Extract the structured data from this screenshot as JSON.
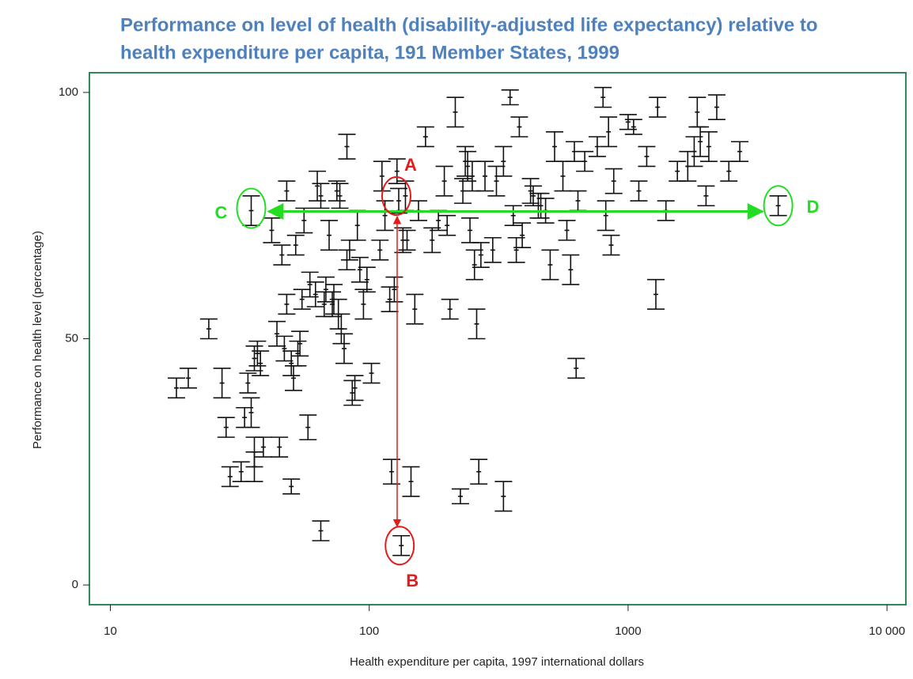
{
  "chart_data": {
    "type": "errorbar_scatter",
    "title": [
      "Performance on level of health (disability-adjusted life expectancy) relative to",
      "health expenditure per capita, 191 Member States, 1999"
    ],
    "x_label": "Health expenditure per capita, 1997 international dollars",
    "y_label": "Performance on health level (percentage)",
    "x_log": true,
    "xlim": [
      8.3,
      11830
    ],
    "ylim": [
      -4,
      104
    ],
    "xticks": [
      10,
      100,
      1000,
      {
        "value": 10000,
        "label": "10 000"
      }
    ],
    "yticks": [
      0,
      50,
      100
    ],
    "color": "#111111",
    "frame_color": "#2e8b57",
    "annotations": [
      {
        "label": "A",
        "color": "#e31b1b"
      },
      {
        "label": "B",
        "color": "#e31b1b"
      },
      {
        "label": "C",
        "color": "#22dd22"
      },
      {
        "label": "D",
        "color": "#22dd22"
      }
    ],
    "x": [
      18,
      20,
      24,
      27,
      28,
      29,
      32,
      33,
      34,
      35,
      35,
      36,
      36,
      36,
      37,
      38,
      39,
      42,
      44,
      45,
      46,
      47,
      48,
      48,
      50,
      50,
      51,
      52,
      53,
      54,
      55,
      56,
      58,
      59,
      62,
      63,
      65,
      65,
      67,
      68,
      70,
      72,
      73,
      75,
      76,
      77,
      78,
      80,
      82,
      82,
      84,
      86,
      88,
      90,
      92,
      95,
      98,
      102,
      110,
      112,
      115,
      120,
      122,
      125,
      128,
      130,
      133,
      135,
      138,
      140,
      145,
      150,
      155,
      165,
      175,
      185,
      195,
      200,
      205,
      215,
      225,
      230,
      235,
      240,
      245,
      250,
      255,
      260,
      265,
      270,
      280,
      300,
      310,
      330,
      330,
      350,
      360,
      370,
      380,
      390,
      420,
      430,
      450,
      460,
      480,
      500,
      520,
      560,
      580,
      600,
      620,
      630,
      640,
      680,
      760,
      800,
      820,
      840,
      860,
      880,
      1000,
      1050,
      1100,
      1180,
      1280,
      1300,
      1400,
      1550,
      1700,
      1800,
      1850,
      1900,
      2000,
      2050,
      2200,
      2450,
      2700,
      3800
    ],
    "values": [
      40,
      42,
      52,
      41,
      32,
      22,
      23,
      34,
      41,
      76,
      35,
      24,
      27,
      46,
      47,
      45,
      28,
      72,
      51,
      28,
      67,
      48,
      57,
      80,
      20,
      45,
      42,
      69,
      47,
      49,
      58,
      74,
      32,
      61,
      59,
      81,
      11,
      79,
      57,
      60,
      71,
      57,
      58,
      80,
      55,
      79,
      52,
      48,
      89,
      66,
      68,
      39,
      40,
      73,
      64,
      57,
      62,
      43,
      68,
      83,
      75,
      58,
      23,
      60,
      84,
      78,
      8,
      70,
      79,
      70,
      21,
      56,
      76,
      91,
      70,
      74,
      82,
      73,
      56,
      96,
      18,
      80,
      86,
      85,
      72,
      83,
      65,
      53,
      23,
      67,
      83,
      68,
      82,
      86,
      18,
      99,
      75,
      68,
      93,
      71,
      80,
      79,
      77,
      77,
      76,
      65,
      89,
      83,
      72,
      64,
      88,
      44,
      78,
      86,
      89,
      99,
      75,
      92,
      69,
      82,
      94,
      93,
      80,
      87,
      59,
      97,
      76,
      84,
      85,
      88,
      96,
      90,
      79,
      89,
      97,
      84,
      88,
      77
    ],
    "errors": [
      2,
      2,
      2,
      3,
      2,
      2,
      2,
      2,
      2,
      3,
      3,
      3,
      3,
      2.5,
      2.5,
      2.5,
      2,
      2.5,
      2.5,
      2,
      2,
      2.5,
      2,
      2,
      1.5,
      2.5,
      2.5,
      2,
      2.5,
      2.5,
      2,
      2.5,
      2.5,
      2.5,
      2.5,
      3,
      2,
      2.5,
      2.5,
      2.5,
      3,
      2.5,
      3,
      2,
      3,
      2.5,
      3,
      3,
      2.5,
      2,
      2,
      2.5,
      2.5,
      3,
      2.5,
      3,
      2.5,
      2,
      2,
      3,
      3,
      2.5,
      2.5,
      2.5,
      2.5,
      2.5,
      2,
      2.5,
      3,
      2,
      3,
      3,
      2,
      2,
      2.5,
      2,
      3,
      2,
      2,
      3,
      1.5,
      2.5,
      3,
      3,
      2.5,
      3,
      3,
      3,
      2.5,
      2.5,
      3,
      2.5,
      3,
      3,
      3,
      1.5,
      2,
      2.5,
      2,
      2.5,
      2.5,
      2,
      2.5,
      2.5,
      2.5,
      3,
      3,
      3,
      2,
      3,
      2,
      2,
      2,
      2,
      2,
      2,
      3,
      3,
      2,
      2.5,
      1.5,
      1.5,
      2,
      2,
      3,
      2,
      2,
      2,
      3,
      3,
      3,
      3,
      2,
      3,
      2.5,
      2,
      2,
      2
    ]
  }
}
